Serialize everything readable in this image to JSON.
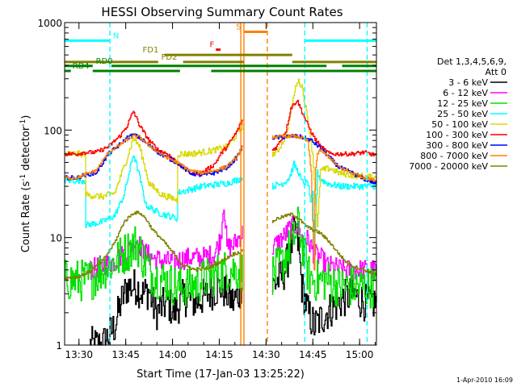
{
  "chart_data": {
    "type": "line",
    "title": "HESSI Observing Summary Count Rates",
    "xlabel": "Start Time (17-Jan-03 13:25:22)",
    "ylabel_main": "Count Rate (s",
    "ylabel_sup1": "-1",
    "ylabel_mid": " detector",
    "ylabel_sup2": "-1",
    "ylabel_end": ")",
    "footer_date": "1-Apr-2010 16:09",
    "x_units": "minutes after 13:25:22 UT",
    "xlim": [
      0,
      100
    ],
    "ylim": [
      1,
      1000
    ],
    "yscale": "log",
    "x_ticks": [
      {
        "value": 4.6,
        "label": "13:30"
      },
      {
        "value": 19.6,
        "label": "13:45"
      },
      {
        "value": 34.6,
        "label": "14:00"
      },
      {
        "value": 49.6,
        "label": "14:15"
      },
      {
        "value": 64.6,
        "label": "14:30"
      },
      {
        "value": 79.6,
        "label": "14:45"
      },
      {
        "value": 94.6,
        "label": "15:00"
      }
    ],
    "y_ticks": [
      {
        "value": 1,
        "label": "1"
      },
      {
        "value": 10,
        "label": "10"
      },
      {
        "value": 100,
        "label": "100"
      },
      {
        "value": 1000,
        "label": "1000"
      }
    ],
    "legend": {
      "placement": "right",
      "title_line1": "Det 1,3,4,5,6,9,",
      "title_line2": "Att 0",
      "entries": [
        {
          "label": "3 - 6 keV",
          "color": "#000000"
        },
        {
          "label": "6 - 12 keV",
          "color": "#ff00ff"
        },
        {
          "label": "12 - 25 keV",
          "color": "#00e000"
        },
        {
          "label": "25 - 50 keV",
          "color": "#00ffff"
        },
        {
          "label": "50 - 100 keV",
          "color": "#d8d800"
        },
        {
          "label": "100 - 300 keV",
          "color": "#ff0000"
        },
        {
          "label": "300 - 800 keV",
          "color": "#0000ff"
        },
        {
          "label": "800 - 7000 keV",
          "color": "#ff8000"
        },
        {
          "label": "7000 - 20000 keV",
          "color": "#808000"
        }
      ]
    },
    "flag_bars": [
      {
        "label": "N",
        "color": "#00ffff",
        "segments": [
          [
            0,
            14.5
          ],
          [
            77,
            100
          ]
        ],
        "y_level": 680,
        "label_x": 15.5
      },
      {
        "label": "S",
        "color": "#ff8000",
        "segments": [
          [
            57.5,
            65
          ]
        ],
        "y_level": 820,
        "label_x": 55
      },
      {
        "label": "F",
        "color": "#ff0000",
        "segments": [
          [
            48.5,
            50
          ]
        ],
        "y_level": 560,
        "label_x": 46.5
      },
      {
        "label": "FD1",
        "color": "#808000",
        "segments": [
          [
            32,
            73
          ]
        ],
        "y_level": 500,
        "label_x": 25
      },
      {
        "label": "FD2",
        "color": "#808000",
        "segments": [
          [
            0,
            30
          ],
          [
            38,
            57.5
          ],
          [
            73,
            100
          ]
        ],
        "y_level": 430,
        "label_x": 31
      },
      {
        "label": "RD0",
        "color": "#008000",
        "segments": [
          [
            0,
            9
          ],
          [
            15,
            84
          ],
          [
            89,
            100
          ]
        ],
        "y_level": 395,
        "label_x": 10
      },
      {
        "label": "RD4",
        "color": "#008000",
        "segments": [
          [
            0,
            2
          ],
          [
            9,
            37
          ],
          [
            47,
            100
          ]
        ],
        "y_level": 355,
        "label_x": 2.5
      }
    ],
    "vertical_markers": [
      {
        "x": 14.5,
        "color": "#00ffff",
        "style": "dashed"
      },
      {
        "x": 56.5,
        "color": "#ff8000",
        "style": "solid"
      },
      {
        "x": 57.5,
        "color": "#ff8000",
        "style": "solid"
      },
      {
        "x": 65,
        "color": "#ff8000",
        "style": "dashed"
      },
      {
        "x": 77,
        "color": "#00ffff",
        "style": "dashed"
      },
      {
        "x": 97,
        "color": "#00ffff",
        "style": "dashed"
      }
    ],
    "gaps": [
      [
        0,
        8
      ],
      [
        57.2,
        66.5
      ],
      [
        100,
        100
      ]
    ],
    "series": [
      {
        "name": "3 - 6 keV",
        "color": "#000000",
        "noise": 0.35,
        "x": [
          8,
          12,
          16,
          18,
          20,
          23,
          25,
          27,
          29,
          33,
          35,
          38,
          42,
          46,
          50,
          54,
          57,
          66.5,
          70,
          72,
          74,
          75,
          76,
          78,
          80,
          84,
          88,
          92,
          96,
          100
        ],
        "y": [
          1,
          1,
          1.5,
          2.5,
          3.5,
          3.5,
          3.0,
          3.2,
          2.0,
          2.5,
          2.0,
          2.8,
          2.5,
          3.0,
          3.5,
          2.5,
          3.5,
          3.5,
          4.5,
          7,
          12,
          8,
          3.5,
          2.0,
          1.5,
          2.0,
          2.5,
          3.0,
          2.5,
          2.5
        ]
      },
      {
        "name": "6 - 12 keV",
        "color": "#ff00ff",
        "noise": 0.2,
        "x": [
          8,
          12,
          16,
          20,
          23,
          25,
          28,
          32,
          35,
          40,
          44,
          48,
          50,
          51,
          52,
          54,
          57,
          66.5,
          70,
          72,
          74,
          76,
          78,
          80,
          82,
          84,
          90,
          100
        ],
        "y": [
          5,
          5.5,
          6,
          7.5,
          9.5,
          7.5,
          6.5,
          6.0,
          6.0,
          6.5,
          6.5,
          7.0,
          10,
          22,
          8,
          8.5,
          11,
          8,
          10,
          12,
          13,
          10,
          9.5,
          7,
          6.5,
          5.5,
          5,
          5
        ]
      },
      {
        "name": "12 - 25 keV",
        "color": "#00e000",
        "noise": 0.4,
        "x": [
          0,
          5,
          8,
          12,
          16,
          20,
          23,
          25,
          28,
          32,
          36,
          40,
          44,
          48,
          52,
          57,
          66.5,
          70,
          72,
          75,
          78,
          80,
          84,
          88,
          92,
          96,
          100
        ],
        "y": [
          4,
          4,
          4,
          5,
          6,
          7.5,
          9,
          6.5,
          4.5,
          4,
          3.5,
          3.5,
          4,
          4.5,
          5,
          5,
          4.5,
          6,
          8,
          13,
          4.5,
          4,
          4,
          3.5,
          3.5,
          3.5,
          3.5
        ]
      },
      {
        "name": "25 - 50 keV",
        "color": "#00ffff",
        "noise": 0.06,
        "x": [
          0,
          6.5,
          6.6,
          12,
          16,
          19,
          21,
          22,
          23.5,
          26,
          30,
          33,
          36,
          36.1,
          40,
          44,
          48,
          52,
          56,
          57,
          66.5,
          70,
          72,
          73.5,
          75,
          76,
          78,
          79,
          79.5,
          80,
          81,
          82,
          84,
          88,
          92,
          96,
          100
        ],
        "y": [
          34,
          34,
          13,
          14,
          16,
          25,
          45,
          60,
          42,
          20,
          17,
          16,
          15,
          26,
          28,
          30,
          31,
          32,
          35,
          36,
          30,
          32,
          36,
          48,
          40,
          33,
          32,
          20,
          26,
          7,
          40,
          35,
          32,
          30,
          30,
          30,
          30
        ]
      },
      {
        "name": "50 - 100 keV",
        "color": "#d8d800",
        "noise": 0.06,
        "x": [
          0,
          6.5,
          6.6,
          12,
          16,
          20,
          22,
          24,
          27,
          31,
          35,
          36,
          36.1,
          40,
          44,
          48,
          52,
          55,
          57,
          66.5,
          68,
          71,
          73,
          74.5,
          76,
          78,
          79.5,
          81,
          82,
          85,
          88,
          92,
          96,
          100
        ],
        "y": [
          60,
          60,
          25,
          24,
          26,
          55,
          85,
          70,
          32,
          25,
          23,
          22,
          60,
          60,
          62,
          65,
          70,
          90,
          110,
          60,
          62,
          90,
          180,
          290,
          260,
          120,
          60,
          12,
          42,
          44,
          40,
          38,
          37,
          36
        ]
      },
      {
        "name": "100 - 300 keV",
        "color": "#ff0000",
        "noise": 0.04,
        "x": [
          0,
          4,
          6,
          10,
          14,
          18,
          20,
          22,
          24,
          27,
          30,
          33,
          36,
          40,
          44,
          48,
          50,
          52,
          55,
          57,
          66.5,
          68,
          71,
          72.5,
          74.5,
          76,
          78,
          80,
          82,
          85,
          88,
          92,
          96,
          100
        ],
        "y": [
          60,
          60,
          62,
          62,
          70,
          90,
          110,
          150,
          110,
          80,
          65,
          60,
          50,
          40,
          40,
          48,
          60,
          70,
          95,
          125,
          65,
          70,
          100,
          160,
          190,
          150,
          110,
          85,
          70,
          60,
          60,
          60,
          62,
          58
        ]
      },
      {
        "name": "300 - 800 keV",
        "color": "#0000ff",
        "noise": 0.04,
        "x": [
          0,
          4,
          6,
          10,
          14,
          18,
          20,
          22,
          24,
          27,
          30,
          33,
          36,
          40,
          44,
          48,
          52,
          55,
          57,
          66.5,
          70,
          73,
          76,
          79,
          82,
          85,
          88,
          92,
          96,
          100
        ],
        "y": [
          36,
          36,
          38,
          40,
          60,
          75,
          85,
          90,
          85,
          72,
          62,
          55,
          50,
          40,
          38,
          40,
          45,
          55,
          70,
          85,
          86,
          88,
          86,
          80,
          68,
          55,
          45,
          40,
          35,
          32
        ]
      },
      {
        "name": "800 - 7000 keV",
        "color": "#ff8000",
        "noise": 0.03,
        "x": [
          0,
          4,
          6,
          10,
          14,
          18,
          20,
          22,
          24,
          27,
          30,
          33,
          36,
          40,
          44,
          48,
          52,
          55,
          57,
          66.5,
          70,
          73,
          76,
          78,
          79,
          80,
          80.3,
          81,
          82,
          85,
          88,
          92,
          96,
          100
        ],
        "y": [
          36,
          36,
          38,
          42,
          62,
          74,
          82,
          88,
          86,
          72,
          62,
          55,
          50,
          42,
          40,
          42,
          46,
          55,
          70,
          86,
          87,
          88,
          85,
          78,
          40,
          5,
          40,
          60,
          65,
          55,
          45,
          40,
          36,
          34
        ]
      },
      {
        "name": "7000 - 20000 keV",
        "color": "#808000",
        "noise": 0.03,
        "x": [
          0,
          4,
          8,
          12,
          16,
          19,
          22,
          24,
          26,
          28,
          32,
          35,
          38,
          42,
          46,
          50,
          54,
          57,
          66.5,
          68,
          71,
          73,
          75,
          77,
          79,
          82,
          85,
          88,
          90,
          92,
          96,
          100
        ],
        "y": [
          4.2,
          4.3,
          4.8,
          6,
          9,
          14,
          17,
          17,
          15,
          12,
          9,
          7,
          5.5,
          5,
          5.2,
          6,
          7,
          7.5,
          14,
          15,
          16,
          16.5,
          15,
          13,
          12,
          11,
          9,
          7,
          6,
          5.5,
          5,
          4.5
        ]
      }
    ]
  }
}
